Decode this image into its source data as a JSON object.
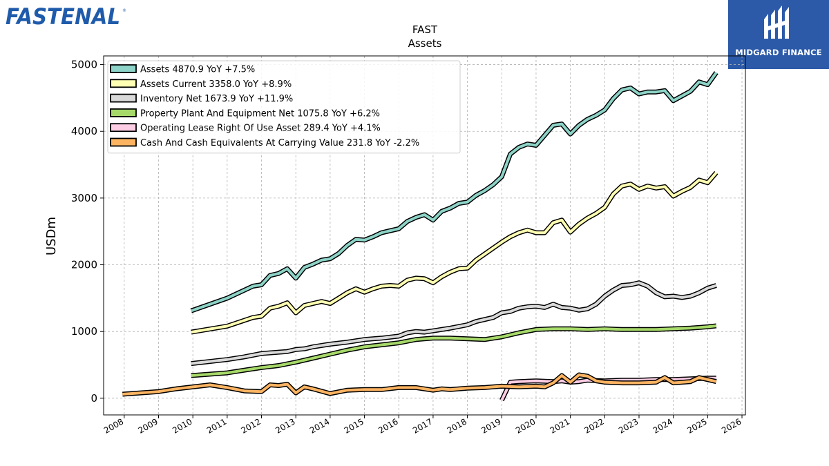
{
  "brand": {
    "left_logo_text": "FASTENAL",
    "right_logo_text": "MIDGARD FINANCE"
  },
  "colors": {
    "fastenal_blue": "#1f5bab",
    "midgard_bg": "#2c5aa8",
    "series": [
      "#8dd3c7",
      "#ffffb3",
      "#d9d9d9",
      "#a6d96a",
      "#fccde5",
      "#fdb462"
    ]
  },
  "chart_data": {
    "type": "line",
    "title": "FAST",
    "subtitle": "Assets",
    "ylabel": "USDm",
    "xlim": [
      2007.4,
      2026.1
    ],
    "ylim": [
      -250,
      5130
    ],
    "yticks": [
      0,
      1000,
      2000,
      3000,
      4000,
      5000
    ],
    "xticks": [
      "2008",
      "2009",
      "2010",
      "2011",
      "2012",
      "2013",
      "2014",
      "2015",
      "2016",
      "2017",
      "2018",
      "2019",
      "2020",
      "2021",
      "2022",
      "2023",
      "2024",
      "2025",
      "2026"
    ],
    "grid": true,
    "legend_position": "top-left",
    "series": [
      {
        "name": "Assets  4870.9 YoY +7.5%",
        "color": "#8dd3c7",
        "points": [
          [
            2009.95,
            1310
          ],
          [
            2011.0,
            1500
          ],
          [
            2011.75,
            1680
          ],
          [
            2012.0,
            1700
          ],
          [
            2012.25,
            1840
          ],
          [
            2012.5,
            1870
          ],
          [
            2012.75,
            1940
          ],
          [
            2013.0,
            1800
          ],
          [
            2013.25,
            1960
          ],
          [
            2013.5,
            2010
          ],
          [
            2013.75,
            2070
          ],
          [
            2014.0,
            2090
          ],
          [
            2014.25,
            2170
          ],
          [
            2014.5,
            2290
          ],
          [
            2014.75,
            2380
          ],
          [
            2015.0,
            2370
          ],
          [
            2015.25,
            2420
          ],
          [
            2015.5,
            2480
          ],
          [
            2015.75,
            2510
          ],
          [
            2016.0,
            2540
          ],
          [
            2016.25,
            2650
          ],
          [
            2016.5,
            2710
          ],
          [
            2016.75,
            2750
          ],
          [
            2017.0,
            2670
          ],
          [
            2017.25,
            2800
          ],
          [
            2017.5,
            2850
          ],
          [
            2017.75,
            2920
          ],
          [
            2018.0,
            2940
          ],
          [
            2018.25,
            3040
          ],
          [
            2018.5,
            3110
          ],
          [
            2018.75,
            3200
          ],
          [
            2019.0,
            3320
          ],
          [
            2019.25,
            3660
          ],
          [
            2019.5,
            3760
          ],
          [
            2019.75,
            3810
          ],
          [
            2020.0,
            3790
          ],
          [
            2020.25,
            3940
          ],
          [
            2020.5,
            4090
          ],
          [
            2020.75,
            4110
          ],
          [
            2021.0,
            3960
          ],
          [
            2021.25,
            4090
          ],
          [
            2021.5,
            4180
          ],
          [
            2021.75,
            4240
          ],
          [
            2022.0,
            4320
          ],
          [
            2022.25,
            4490
          ],
          [
            2022.5,
            4620
          ],
          [
            2022.75,
            4650
          ],
          [
            2023.0,
            4560
          ],
          [
            2023.25,
            4590
          ],
          [
            2023.5,
            4590
          ],
          [
            2023.75,
            4610
          ],
          [
            2024.0,
            4460
          ],
          [
            2024.25,
            4530
          ],
          [
            2024.5,
            4600
          ],
          [
            2024.75,
            4740
          ],
          [
            2025.0,
            4700
          ],
          [
            2025.25,
            4880
          ]
        ]
      },
      {
        "name": "Assets Current  3358.0 YoY +8.9%",
        "color": "#ffffb3",
        "points": [
          [
            2009.95,
            990
          ],
          [
            2011.0,
            1080
          ],
          [
            2011.75,
            1210
          ],
          [
            2012.0,
            1230
          ],
          [
            2012.25,
            1350
          ],
          [
            2012.5,
            1380
          ],
          [
            2012.75,
            1430
          ],
          [
            2013.0,
            1280
          ],
          [
            2013.25,
            1390
          ],
          [
            2013.5,
            1420
          ],
          [
            2013.75,
            1450
          ],
          [
            2014.0,
            1420
          ],
          [
            2014.25,
            1500
          ],
          [
            2014.5,
            1580
          ],
          [
            2014.75,
            1640
          ],
          [
            2015.0,
            1590
          ],
          [
            2015.25,
            1640
          ],
          [
            2015.5,
            1680
          ],
          [
            2015.75,
            1690
          ],
          [
            2016.0,
            1680
          ],
          [
            2016.25,
            1770
          ],
          [
            2016.5,
            1800
          ],
          [
            2016.75,
            1790
          ],
          [
            2017.0,
            1730
          ],
          [
            2017.25,
            1820
          ],
          [
            2017.5,
            1890
          ],
          [
            2017.75,
            1940
          ],
          [
            2018.0,
            1950
          ],
          [
            2018.25,
            2070
          ],
          [
            2018.5,
            2160
          ],
          [
            2018.75,
            2250
          ],
          [
            2019.0,
            2340
          ],
          [
            2019.25,
            2420
          ],
          [
            2019.5,
            2480
          ],
          [
            2019.75,
            2520
          ],
          [
            2020.0,
            2480
          ],
          [
            2020.25,
            2480
          ],
          [
            2020.5,
            2630
          ],
          [
            2020.75,
            2670
          ],
          [
            2021.0,
            2490
          ],
          [
            2021.25,
            2610
          ],
          [
            2021.5,
            2700
          ],
          [
            2021.75,
            2770
          ],
          [
            2022.0,
            2860
          ],
          [
            2022.25,
            3060
          ],
          [
            2022.5,
            3180
          ],
          [
            2022.75,
            3210
          ],
          [
            2023.0,
            3130
          ],
          [
            2023.25,
            3180
          ],
          [
            2023.5,
            3150
          ],
          [
            2023.75,
            3170
          ],
          [
            2024.0,
            3030
          ],
          [
            2024.25,
            3100
          ],
          [
            2024.5,
            3160
          ],
          [
            2024.75,
            3270
          ],
          [
            2025.0,
            3230
          ],
          [
            2025.25,
            3380
          ]
        ]
      },
      {
        "name": "Inventory Net  1673.9 YoY +11.9%",
        "color": "#d9d9d9",
        "points": [
          [
            2009.95,
            520
          ],
          [
            2011.0,
            580
          ],
          [
            2011.5,
            620
          ],
          [
            2012.0,
            670
          ],
          [
            2012.5,
            690
          ],
          [
            2012.75,
            700
          ],
          [
            2013.0,
            730
          ],
          [
            2013.25,
            740
          ],
          [
            2013.5,
            770
          ],
          [
            2014.0,
            810
          ],
          [
            2014.5,
            840
          ],
          [
            2015.0,
            880
          ],
          [
            2015.5,
            900
          ],
          [
            2016.0,
            930
          ],
          [
            2016.25,
            980
          ],
          [
            2016.5,
            1000
          ],
          [
            2016.75,
            990
          ],
          [
            2017.0,
            1010
          ],
          [
            2017.5,
            1050
          ],
          [
            2018.0,
            1100
          ],
          [
            2018.25,
            1150
          ],
          [
            2018.5,
            1180
          ],
          [
            2018.75,
            1210
          ],
          [
            2019.0,
            1280
          ],
          [
            2019.25,
            1300
          ],
          [
            2019.5,
            1350
          ],
          [
            2019.75,
            1370
          ],
          [
            2020.0,
            1380
          ],
          [
            2020.25,
            1360
          ],
          [
            2020.5,
            1410
          ],
          [
            2020.75,
            1360
          ],
          [
            2021.0,
            1350
          ],
          [
            2021.25,
            1320
          ],
          [
            2021.5,
            1340
          ],
          [
            2021.75,
            1410
          ],
          [
            2022.0,
            1530
          ],
          [
            2022.25,
            1620
          ],
          [
            2022.5,
            1690
          ],
          [
            2022.75,
            1700
          ],
          [
            2023.0,
            1730
          ],
          [
            2023.25,
            1680
          ],
          [
            2023.5,
            1580
          ],
          [
            2023.75,
            1520
          ],
          [
            2024.0,
            1530
          ],
          [
            2024.25,
            1510
          ],
          [
            2024.5,
            1530
          ],
          [
            2024.75,
            1580
          ],
          [
            2025.0,
            1650
          ],
          [
            2025.25,
            1690
          ]
        ]
      },
      {
        "name": "Property Plant And Equipment Net  1075.8 YoY +6.2%",
        "color": "#a6d96a",
        "points": [
          [
            2009.95,
            340
          ],
          [
            2011.0,
            380
          ],
          [
            2011.5,
            420
          ],
          [
            2012.0,
            460
          ],
          [
            2012.5,
            490
          ],
          [
            2013.0,
            540
          ],
          [
            2013.5,
            600
          ],
          [
            2014.0,
            660
          ],
          [
            2014.5,
            720
          ],
          [
            2015.0,
            770
          ],
          [
            2015.5,
            800
          ],
          [
            2016.0,
            830
          ],
          [
            2016.5,
            880
          ],
          [
            2017.0,
            900
          ],
          [
            2017.5,
            900
          ],
          [
            2018.0,
            890
          ],
          [
            2018.5,
            880
          ],
          [
            2019.0,
            920
          ],
          [
            2019.5,
            980
          ],
          [
            2020.0,
            1030
          ],
          [
            2020.5,
            1040
          ],
          [
            2021.0,
            1040
          ],
          [
            2021.5,
            1030
          ],
          [
            2022.0,
            1040
          ],
          [
            2022.5,
            1030
          ],
          [
            2023.0,
            1030
          ],
          [
            2023.5,
            1030
          ],
          [
            2024.0,
            1040
          ],
          [
            2024.5,
            1050
          ],
          [
            2025.0,
            1070
          ],
          [
            2025.25,
            1085
          ]
        ]
      },
      {
        "name": "Operating Lease Right Of Use Asset  289.4 YoY +4.1%",
        "color": "#fccde5",
        "points": [
          [
            2019.0,
            -30
          ],
          [
            2019.25,
            240
          ],
          [
            2019.5,
            250
          ],
          [
            2020.0,
            260
          ],
          [
            2020.5,
            250
          ],
          [
            2020.75,
            260
          ],
          [
            2021.0,
            240
          ],
          [
            2021.25,
            250
          ],
          [
            2021.5,
            270
          ],
          [
            2022.0,
            260
          ],
          [
            2022.5,
            270
          ],
          [
            2023.0,
            270
          ],
          [
            2023.5,
            280
          ],
          [
            2024.0,
            280
          ],
          [
            2024.5,
            290
          ],
          [
            2025.0,
            300
          ],
          [
            2025.25,
            300
          ]
        ]
      },
      {
        "name": "Cash And Cash Equivalents At Carrying Value  231.8 YoY -2.2%",
        "color": "#fdb462",
        "points": [
          [
            2007.95,
            60
          ],
          [
            2009.0,
            100
          ],
          [
            2009.5,
            140
          ],
          [
            2010.0,
            170
          ],
          [
            2010.5,
            200
          ],
          [
            2011.0,
            160
          ],
          [
            2011.5,
            110
          ],
          [
            2012.0,
            100
          ],
          [
            2012.25,
            200
          ],
          [
            2012.5,
            190
          ],
          [
            2012.75,
            210
          ],
          [
            2013.0,
            80
          ],
          [
            2013.25,
            170
          ],
          [
            2013.5,
            140
          ],
          [
            2014.0,
            70
          ],
          [
            2014.5,
            120
          ],
          [
            2015.0,
            130
          ],
          [
            2015.5,
            130
          ],
          [
            2016.0,
            160
          ],
          [
            2016.5,
            160
          ],
          [
            2017.0,
            120
          ],
          [
            2017.25,
            140
          ],
          [
            2017.5,
            130
          ],
          [
            2018.0,
            150
          ],
          [
            2018.5,
            160
          ],
          [
            2019.0,
            180
          ],
          [
            2019.5,
            170
          ],
          [
            2020.0,
            180
          ],
          [
            2020.25,
            170
          ],
          [
            2020.5,
            230
          ],
          [
            2020.75,
            340
          ],
          [
            2021.0,
            240
          ],
          [
            2021.25,
            350
          ],
          [
            2021.5,
            330
          ],
          [
            2021.75,
            260
          ],
          [
            2022.0,
            240
          ],
          [
            2022.5,
            230
          ],
          [
            2023.0,
            230
          ],
          [
            2023.5,
            240
          ],
          [
            2023.75,
            310
          ],
          [
            2024.0,
            230
          ],
          [
            2024.5,
            250
          ],
          [
            2024.75,
            310
          ],
          [
            2025.0,
            280
          ],
          [
            2025.25,
            250
          ]
        ]
      }
    ]
  }
}
